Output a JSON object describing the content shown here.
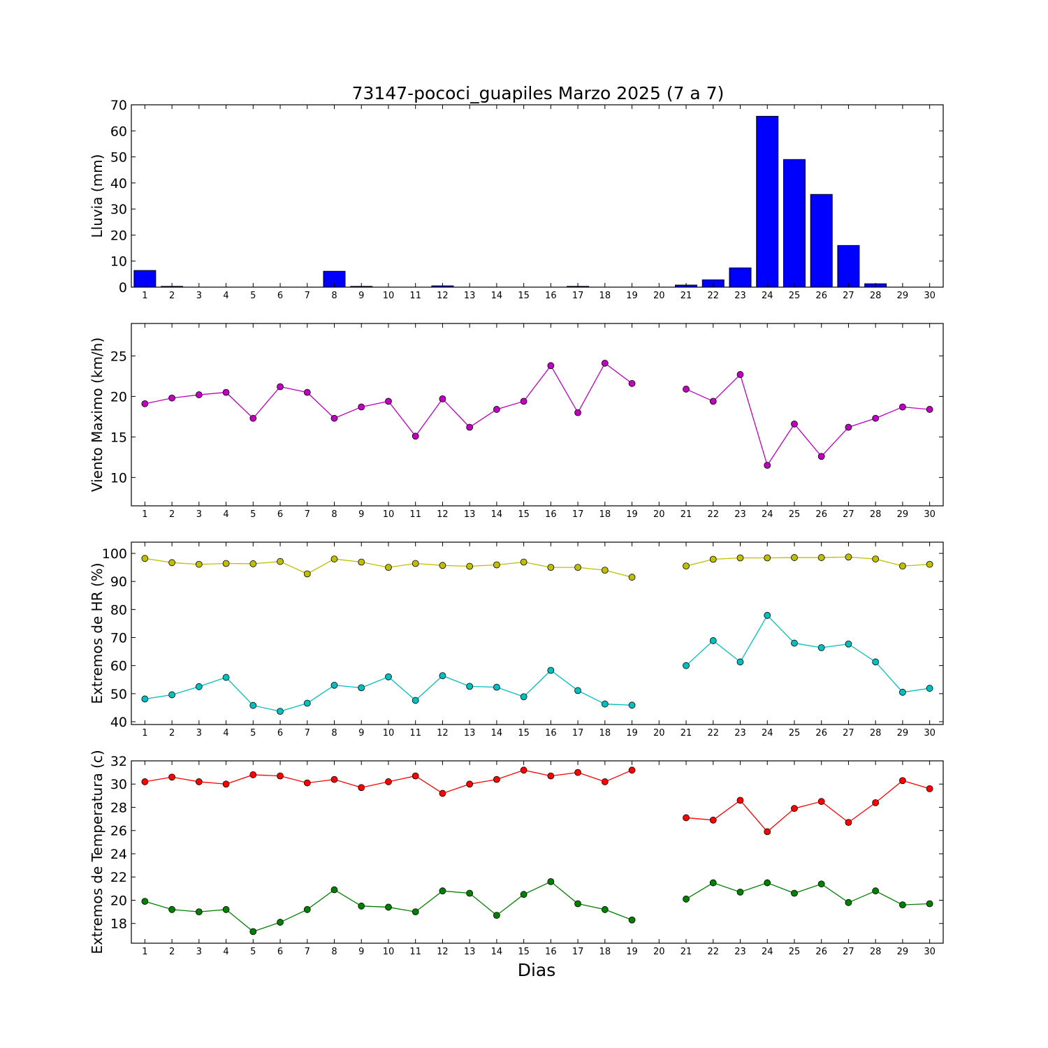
{
  "figure": {
    "title": "73147-pococi_guapiles Marzo 2025  (7 a 7)",
    "xlabel": "Dias"
  },
  "chart_data": [
    {
      "type": "bar",
      "ylabel": "Lluvia (mm)",
      "ylim": [
        0,
        70
      ],
      "yticks": [
        0,
        10,
        20,
        30,
        40,
        50,
        60,
        70
      ],
      "x": [
        1,
        2,
        3,
        4,
        5,
        6,
        7,
        8,
        9,
        10,
        11,
        12,
        13,
        14,
        15,
        16,
        17,
        18,
        19,
        20,
        21,
        22,
        23,
        24,
        25,
        26,
        27,
        28,
        29,
        30
      ],
      "xlim": [
        0.5,
        30.5
      ],
      "grid": false,
      "series": [
        {
          "color": "#0000ff",
          "values": [
            6.4,
            0.3,
            0,
            0,
            0,
            0,
            0,
            6.1,
            0.3,
            0,
            0,
            0.5,
            0,
            0,
            0,
            0,
            0.3,
            0,
            0,
            null,
            0.8,
            2.8,
            7.4,
            65.6,
            49.0,
            35.6,
            16.0,
            1.3,
            0,
            0
          ]
        }
      ]
    },
    {
      "type": "line",
      "ylabel": "Viento Maximo (km/h)",
      "ylim": [
        6.5,
        29
      ],
      "yticks": [
        10,
        15,
        20,
        25
      ],
      "x": [
        1,
        2,
        3,
        4,
        5,
        6,
        7,
        8,
        9,
        10,
        11,
        12,
        13,
        14,
        15,
        16,
        17,
        18,
        19,
        20,
        21,
        22,
        23,
        24,
        25,
        26,
        27,
        28,
        29,
        30
      ],
      "xlim": [
        0.5,
        30.5
      ],
      "grid": false,
      "series": [
        {
          "color": "#bf00bf",
          "values": [
            19.1,
            19.8,
            20.2,
            20.5,
            17.3,
            21.2,
            20.5,
            17.3,
            18.7,
            19.4,
            15.1,
            19.7,
            16.2,
            18.4,
            19.4,
            23.8,
            18.0,
            24.1,
            21.6,
            null,
            20.9,
            19.4,
            22.7,
            11.5,
            16.6,
            12.6,
            16.2,
            17.3,
            18.7,
            18.4
          ]
        }
      ]
    },
    {
      "type": "line",
      "ylabel": "Extremos de HR (%)",
      "ylim": [
        39,
        104
      ],
      "yticks": [
        40,
        50,
        60,
        70,
        80,
        90,
        100
      ],
      "x": [
        1,
        2,
        3,
        4,
        5,
        6,
        7,
        8,
        9,
        10,
        11,
        12,
        13,
        14,
        15,
        16,
        17,
        18,
        19,
        20,
        21,
        22,
        23,
        24,
        25,
        26,
        27,
        28,
        29,
        30
      ],
      "xlim": [
        0.5,
        30.5
      ],
      "grid": false,
      "series": [
        {
          "color": "#bfbf00",
          "values": [
            98.2,
            96.7,
            96.1,
            96.4,
            96.3,
            97.1,
            92.7,
            98.0,
            96.9,
            95.0,
            96.4,
            95.7,
            95.4,
            95.9,
            96.9,
            95.0,
            95.0,
            94.0,
            91.5,
            null,
            95.5,
            97.9,
            98.4,
            98.4,
            98.5,
            98.5,
            98.7,
            98.0,
            95.5,
            96.1
          ]
        },
        {
          "color": "#00bfbf",
          "values": [
            48.1,
            49.6,
            52.5,
            55.8,
            45.8,
            43.7,
            46.6,
            53.0,
            52.1,
            56.0,
            47.6,
            56.4,
            52.6,
            52.3,
            48.9,
            58.3,
            51.1,
            46.3,
            45.9,
            null,
            60.0,
            68.9,
            61.3,
            77.9,
            68.0,
            66.4,
            67.7,
            61.3,
            50.5,
            51.9
          ]
        }
      ]
    },
    {
      "type": "line",
      "ylabel": "Extremos de Temperatura (c)",
      "ylim": [
        16.3,
        32
      ],
      "yticks": [
        18,
        20,
        22,
        24,
        26,
        28,
        30,
        32
      ],
      "x": [
        1,
        2,
        3,
        4,
        5,
        6,
        7,
        8,
        9,
        10,
        11,
        12,
        13,
        14,
        15,
        16,
        17,
        18,
        19,
        20,
        21,
        22,
        23,
        24,
        25,
        26,
        27,
        28,
        29,
        30
      ],
      "xlim": [
        0.5,
        30.5
      ],
      "grid": false,
      "series": [
        {
          "color": "#ff0000",
          "values": [
            30.2,
            30.6,
            30.2,
            30.0,
            30.8,
            30.7,
            30.1,
            30.4,
            29.7,
            30.2,
            30.7,
            29.2,
            30.0,
            30.4,
            31.2,
            30.7,
            31.0,
            30.2,
            31.2,
            null,
            27.1,
            26.9,
            28.6,
            25.9,
            27.9,
            28.5,
            26.7,
            28.4,
            30.3,
            29.6
          ]
        },
        {
          "color": "#007f00",
          "values": [
            19.9,
            19.2,
            19.0,
            19.2,
            17.3,
            18.1,
            19.2,
            20.9,
            19.5,
            19.4,
            19.0,
            20.8,
            20.6,
            18.7,
            20.5,
            21.6,
            19.7,
            19.2,
            18.3,
            null,
            20.1,
            21.5,
            20.7,
            21.5,
            20.6,
            21.4,
            19.8,
            20.8,
            19.6,
            19.7
          ]
        }
      ]
    }
  ]
}
